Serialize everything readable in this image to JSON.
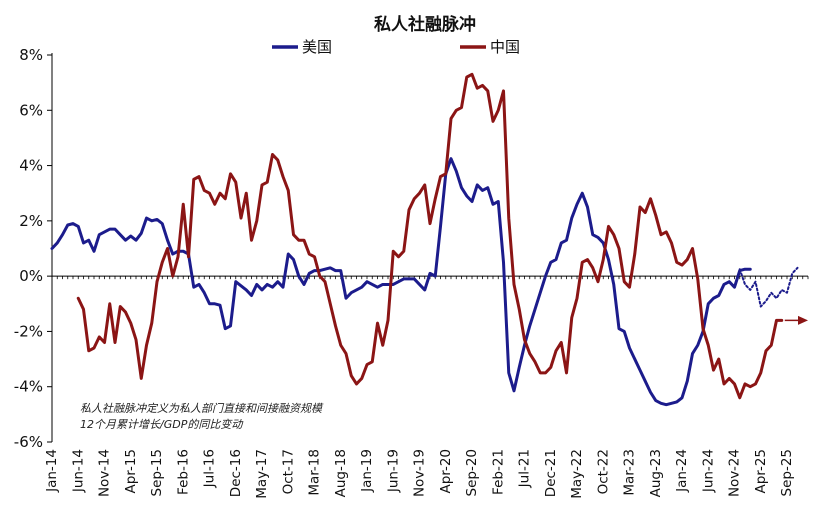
{
  "chart_data": {
    "type": "line",
    "title": "私人社融脉冲",
    "xlabel": "",
    "ylabel": "",
    "ylim": [
      -6,
      8
    ],
    "y_ticks": [
      "8%",
      "6%",
      "4%",
      "2%",
      "0%",
      "-2%",
      "-4%",
      "-6%"
    ],
    "y_tick_values": [
      8,
      6,
      4,
      2,
      0,
      -2,
      -4,
      -6
    ],
    "x_start": "Jan-14",
    "x_end": "Dec-25",
    "x_tick_labels": [
      "Jan-14",
      "Jun-14",
      "Nov-14",
      "Apr-15",
      "Sep-15",
      "Feb-16",
      "Jul-16",
      "Dec-16",
      "May-17",
      "Oct-17",
      "Mar-18",
      "Aug-18",
      "Jan-19",
      "Jun-19",
      "Nov-19",
      "Apr-20",
      "Sep-20",
      "Feb-21",
      "Jul-21",
      "Dec-21",
      "May-22",
      "Oct-22",
      "Mar-23",
      "Aug-23",
      "Jan-24",
      "Jun-24",
      "Nov-24",
      "Apr-25",
      "Sep-25"
    ],
    "legend": {
      "position": "top",
      "entries": [
        "美国",
        "中国"
      ]
    },
    "annotation": {
      "line1": "私人社融脉冲定义为私人部门直接和间接融资规模",
      "line2": "12个月累计增长/GDP的同比变动"
    },
    "colors": {
      "us": "#1c1c8c",
      "china": "#8b1515"
    },
    "series": [
      {
        "name": "美国",
        "key": "us",
        "start_index": 0,
        "values": [
          1.0,
          1.2,
          1.5,
          1.85,
          1.9,
          1.8,
          1.2,
          1.3,
          0.9,
          1.5,
          1.6,
          1.7,
          1.7,
          1.5,
          1.3,
          1.45,
          1.3,
          1.55,
          2.1,
          2.0,
          2.05,
          1.9,
          1.3,
          0.8,
          0.9,
          0.9,
          0.8,
          -0.4,
          -0.3,
          -0.6,
          -1.0,
          -1.0,
          -1.05,
          -1.9,
          -1.8,
          -0.2,
          -0.35,
          -0.5,
          -0.7,
          -0.3,
          -0.5,
          -0.3,
          -0.4,
          -0.2,
          -0.4,
          0.8,
          0.6,
          0.0,
          -0.3,
          0.1,
          0.2,
          0.2,
          0.25,
          0.3,
          0.2,
          0.2,
          -0.8,
          -0.6,
          -0.5,
          -0.4,
          -0.2,
          -0.3,
          -0.4,
          -0.3,
          -0.3,
          -0.3,
          -0.2,
          -0.1,
          -0.1,
          -0.1,
          -0.3,
          -0.5,
          0.1,
          0.0,
          1.8,
          3.7,
          4.25,
          3.8,
          3.2,
          2.9,
          2.7,
          3.3,
          3.1,
          3.2,
          2.6,
          2.7,
          0.5,
          -3.5,
          -4.15,
          -3.3,
          -2.5,
          -1.8,
          -1.2,
          -0.6,
          0.0,
          0.5,
          0.6,
          1.2,
          1.3,
          2.1,
          2.6,
          3.0,
          2.5,
          1.5,
          1.4,
          1.2,
          0.6,
          -0.3,
          -1.9,
          -2.0,
          -2.6,
          -3.0,
          -3.4,
          -3.8,
          -4.2,
          -4.5,
          -4.6,
          -4.65,
          -4.6,
          -4.55,
          -4.4,
          -3.8,
          -2.8,
          -2.5,
          -2.0,
          -1.0,
          -0.8,
          -0.7,
          -0.3,
          -0.2,
          -0.4,
          0.2,
          0.25,
          0.25
        ]
      },
      {
        "name": "中国",
        "key": "china",
        "start_index": 5,
        "values": [
          -0.8,
          -1.2,
          -2.7,
          -2.6,
          -2.2,
          -2.4,
          -1.0,
          -2.4,
          -1.1,
          -1.3,
          -1.7,
          -2.3,
          -3.7,
          -2.5,
          -1.7,
          -0.2,
          0.5,
          1.0,
          0.0,
          0.7,
          2.6,
          0.7,
          3.5,
          3.6,
          3.1,
          3.0,
          2.6,
          3.0,
          2.8,
          3.7,
          3.4,
          2.1,
          3.0,
          1.3,
          2.0,
          3.3,
          3.4,
          4.4,
          4.2,
          3.6,
          3.1,
          1.5,
          1.3,
          1.3,
          0.8,
          0.7,
          0.0,
          -0.2,
          -1.0,
          -1.8,
          -2.5,
          -2.8,
          -3.6,
          -3.9,
          -3.7,
          -3.2,
          -3.1,
          -1.7,
          -2.5,
          -1.6,
          0.9,
          0.7,
          0.9,
          2.4,
          2.8,
          3.0,
          3.3,
          1.9,
          2.8,
          3.6,
          3.7,
          5.7,
          6.0,
          6.1,
          7.2,
          7.3,
          6.8,
          6.9,
          6.7,
          5.6,
          6.0,
          6.7,
          2.1,
          -0.3,
          -1.2,
          -2.3,
          -2.8,
          -3.1,
          -3.5,
          -3.5,
          -3.3,
          -2.7,
          -2.4,
          -3.5,
          -1.5,
          -0.8,
          0.5,
          0.6,
          0.3,
          -0.2,
          0.6,
          1.8,
          1.5,
          1.0,
          -0.2,
          -0.4,
          0.8,
          2.5,
          2.3,
          2.8,
          2.2,
          1.5,
          1.6,
          1.2,
          0.5,
          0.4,
          0.6,
          1.0,
          -0.1,
          -1.9,
          -2.5,
          -3.4,
          -3.0,
          -3.9,
          -3.7,
          -3.9,
          -4.4,
          -3.9,
          -4.0,
          -3.9,
          -3.5,
          -2.7,
          -2.5,
          -1.6,
          -1.6
        ]
      },
      {
        "name": "美国预测",
        "key": "us_forecast",
        "start_index": 131,
        "values": [
          0.25,
          -0.3,
          -0.5,
          -0.2,
          -1.1,
          -0.9,
          -0.6,
          -0.8,
          -0.5,
          -0.6,
          0.1,
          0.3
        ]
      }
    ]
  }
}
